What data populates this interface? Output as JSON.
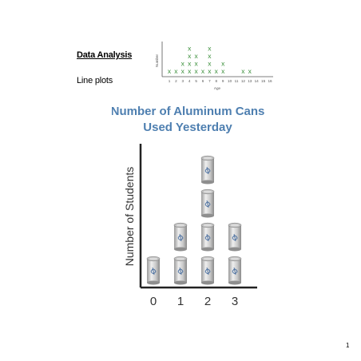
{
  "slide": {
    "heading": "Data Analysis",
    "subheading": "Line plots",
    "page_number": "1"
  },
  "colors": {
    "mark_green": "#3a8f3a",
    "title_blue": "#4e7fb0",
    "axis_black": "#222222",
    "can_body": "#c9c9c9"
  },
  "chart_data": [
    {
      "type": "scatter",
      "style": "line-plot",
      "mark_symbol": "x",
      "title": "",
      "xlabel": "Age",
      "ylabel": "Number",
      "x_ticks": [
        1,
        2,
        3,
        4,
        5,
        6,
        7,
        8,
        9,
        10,
        11,
        12,
        13,
        14,
        15,
        16
      ],
      "xlim": [
        1,
        16
      ],
      "categories": [
        1,
        2,
        3,
        4,
        5,
        6,
        7,
        8,
        9,
        10,
        11,
        12,
        13,
        14,
        15,
        16
      ],
      "values": [
        1,
        1,
        2,
        4,
        3,
        1,
        4,
        1,
        2,
        0,
        0,
        1,
        1,
        0,
        0,
        0
      ],
      "grid": false
    },
    {
      "type": "scatter",
      "style": "pictograph",
      "mark_symbol": "can-icon",
      "title": "Number of Aluminum Cans Used Yesterday",
      "title_lines": [
        "Number of Aluminum Cans",
        "Used Yesterday"
      ],
      "xlabel": "",
      "ylabel": "Number of Students",
      "x_ticks": [
        "0",
        "1",
        "2",
        "3"
      ],
      "categories": [
        0,
        1,
        2,
        3
      ],
      "values": [
        1,
        2,
        4,
        2
      ],
      "grid": false
    }
  ]
}
